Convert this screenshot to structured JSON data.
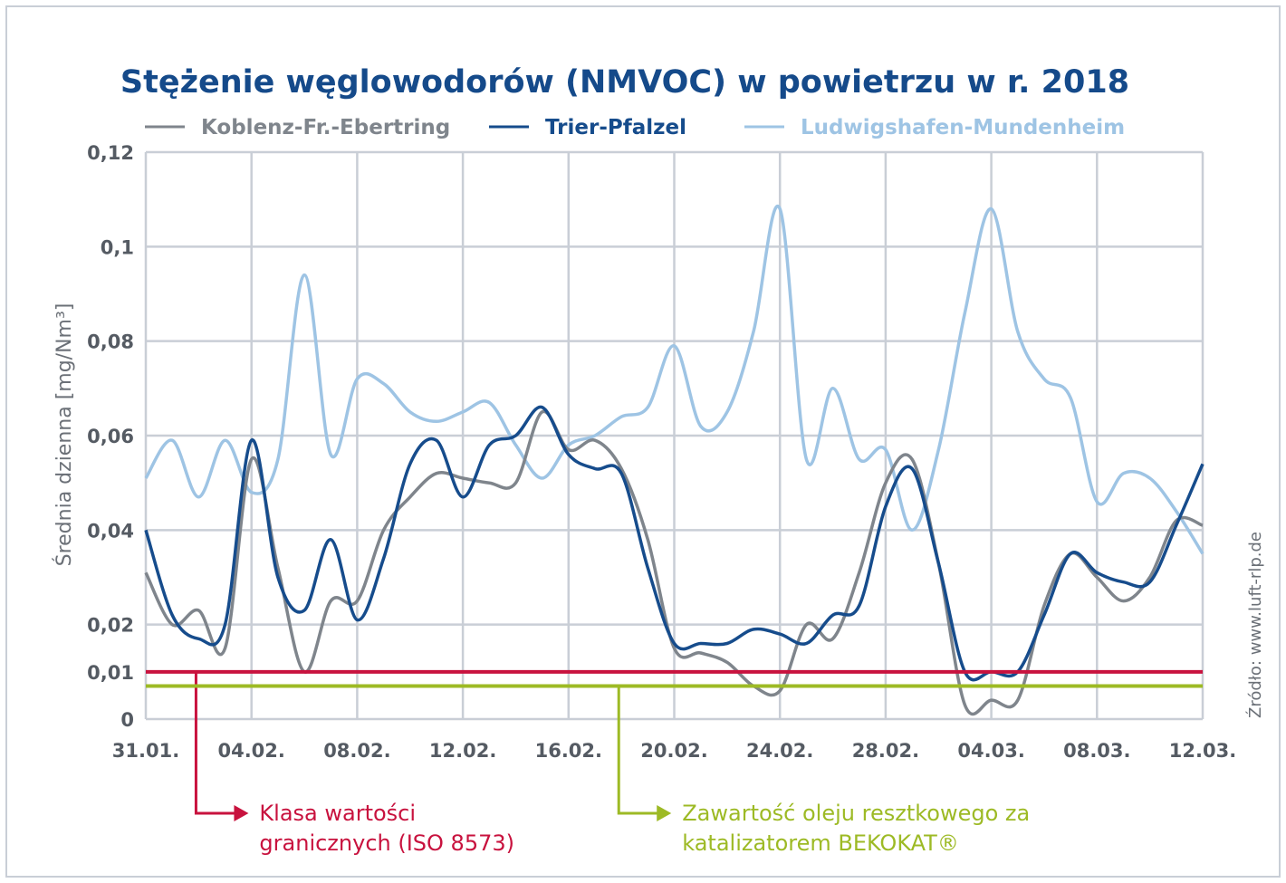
{
  "chart_data": {
    "type": "line",
    "title": "Stężenie węglowodorów (NMVOC) w powietrzu w r. 2018",
    "ylabel": "Średnia dzienna [mg/Nm³]",
    "xlabel": "",
    "source": "Źródło: www.luft-rlp.de",
    "ylim": [
      0,
      0.12
    ],
    "yticks": [
      {
        "v": 0,
        "label": "0"
      },
      {
        "v": 0.01,
        "label": "0,01"
      },
      {
        "v": 0.02,
        "label": "0,02"
      },
      {
        "v": 0.04,
        "label": "0,04"
      },
      {
        "v": 0.06,
        "label": "0,06"
      },
      {
        "v": 0.08,
        "label": "0,08"
      },
      {
        "v": 0.1,
        "label": "0,1"
      },
      {
        "v": 0.12,
        "label": "0,12"
      }
    ],
    "xlim": [
      0,
      40
    ],
    "xticks": [
      {
        "v": 0,
        "label": "31.01."
      },
      {
        "v": 4,
        "label": "04.02."
      },
      {
        "v": 8,
        "label": "08.02."
      },
      {
        "v": 12,
        "label": "12.02."
      },
      {
        "v": 16,
        "label": "16.02."
      },
      {
        "v": 20,
        "label": "20.02."
      },
      {
        "v": 24,
        "label": "24.02."
      },
      {
        "v": 28,
        "label": "28.02."
      },
      {
        "v": 32,
        "label": "04.03."
      },
      {
        "v": 36,
        "label": "08.03."
      },
      {
        "v": 40,
        "label": "12.03."
      }
    ],
    "grid": true,
    "legend_position": "top",
    "series": [
      {
        "name": "Koblenz-Fr.-Ebertring",
        "color": "#7f858c",
        "x": [
          0,
          1,
          2,
          3,
          4,
          5,
          6,
          7,
          8,
          9,
          10,
          11,
          12,
          13,
          14,
          15,
          16,
          17,
          18,
          19,
          20,
          21,
          22,
          23,
          24,
          25,
          26,
          27,
          28,
          29,
          30,
          31,
          32,
          33,
          34,
          35,
          36,
          37,
          38,
          39,
          40
        ],
        "values": [
          0.031,
          0.02,
          0.023,
          0.015,
          0.055,
          0.032,
          0.01,
          0.025,
          0.025,
          0.04,
          0.047,
          0.052,
          0.051,
          0.05,
          0.05,
          0.065,
          0.057,
          0.059,
          0.053,
          0.038,
          0.015,
          0.014,
          0.012,
          0.007,
          0.006,
          0.02,
          0.017,
          0.031,
          0.05,
          0.055,
          0.033,
          0.003,
          0.004,
          0.004,
          0.024,
          0.035,
          0.03,
          0.025,
          0.03,
          0.042,
          0.041
        ]
      },
      {
        "name": "Trier-Pfalzel",
        "color": "#164c8c",
        "x": [
          0,
          1,
          2,
          3,
          4,
          5,
          6,
          7,
          8,
          9,
          10,
          11,
          12,
          13,
          14,
          15,
          16,
          17,
          18,
          19,
          20,
          21,
          22,
          23,
          24,
          25,
          26,
          27,
          28,
          29,
          30,
          31,
          32,
          33,
          34,
          35,
          36,
          37,
          38,
          39,
          40
        ],
        "values": [
          0.04,
          0.022,
          0.017,
          0.02,
          0.059,
          0.03,
          0.023,
          0.038,
          0.021,
          0.034,
          0.054,
          0.059,
          0.047,
          0.058,
          0.06,
          0.066,
          0.056,
          0.053,
          0.052,
          0.032,
          0.016,
          0.016,
          0.016,
          0.019,
          0.018,
          0.016,
          0.022,
          0.024,
          0.045,
          0.053,
          0.033,
          0.01,
          0.01,
          0.01,
          0.022,
          0.035,
          0.031,
          0.029,
          0.029,
          0.041,
          0.054
        ]
      },
      {
        "name": "Ludwigshafen-Mundenheim",
        "color": "#9ec4e4",
        "x": [
          0,
          1,
          2,
          3,
          4,
          5,
          6,
          7,
          8,
          9,
          10,
          11,
          12,
          13,
          14,
          15,
          16,
          17,
          18,
          19,
          20,
          21,
          22,
          23,
          24,
          25,
          26,
          27,
          28,
          29,
          30,
          31,
          32,
          33,
          34,
          35,
          36,
          37,
          38,
          39,
          40
        ],
        "values": [
          0.051,
          0.059,
          0.047,
          0.059,
          0.048,
          0.055,
          0.094,
          0.056,
          0.072,
          0.071,
          0.065,
          0.063,
          0.065,
          0.067,
          0.058,
          0.051,
          0.058,
          0.06,
          0.064,
          0.066,
          0.079,
          0.062,
          0.065,
          0.082,
          0.108,
          0.055,
          0.07,
          0.055,
          0.057,
          0.04,
          0.057,
          0.086,
          0.108,
          0.082,
          0.072,
          0.068,
          0.046,
          0.052,
          0.051,
          0.044,
          0.035
        ]
      }
    ],
    "reference_lines": [
      {
        "value": 0.01,
        "color": "#c8123e",
        "label_line1": "Klasa wartości",
        "label_line2": "granicznych (ISO 8573)",
        "anchor_x": 1.9
      },
      {
        "value": 0.007,
        "color": "#9dba25",
        "label_line1": "Zawartość oleju resztkowego za",
        "label_line2": "katalizatorem  BEKOKAT®",
        "anchor_x": 17.9
      }
    ]
  }
}
